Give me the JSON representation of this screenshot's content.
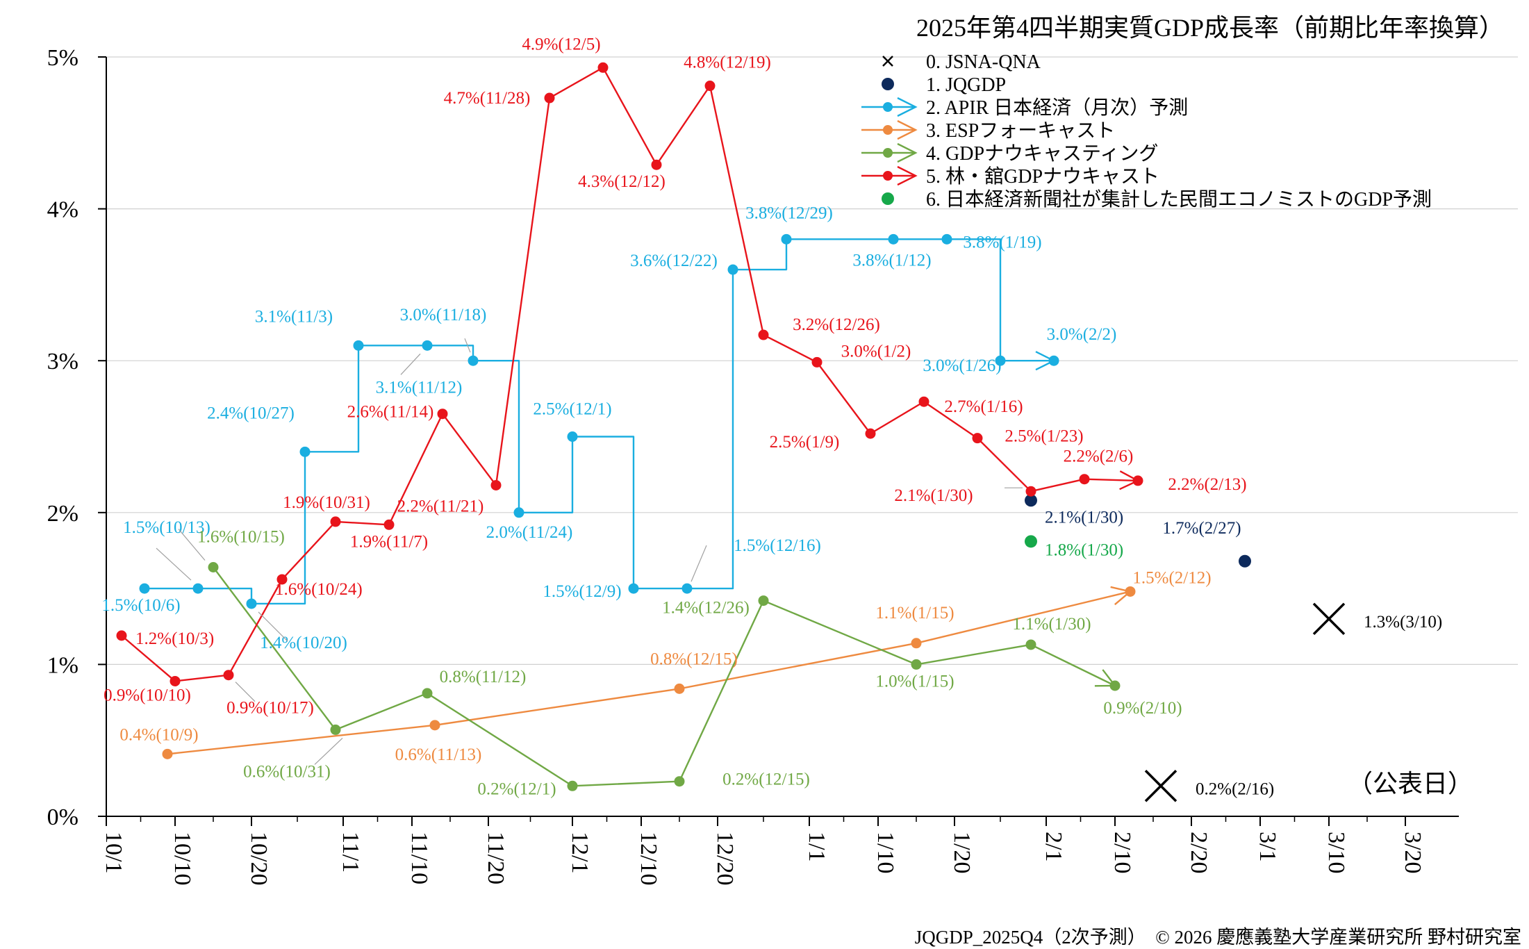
{
  "chart_data": {
    "type": "line",
    "title": "2025年第4四半期実質GDP成長率（前期比年率換算）",
    "footer": "JQGDP_2025Q4（2次予測）　© 2026 慶應義塾大学産業研究所 野村研究室",
    "announce_label": "（公表日）",
    "y_ticks": [
      "0%",
      "1%",
      "2%",
      "3%",
      "4%",
      "5%"
    ],
    "ylim": [
      0,
      5
    ],
    "x_ticks": [
      "10/1",
      "10/10",
      "10/20",
      "11/1",
      "11/10",
      "11/20",
      "12/1",
      "12/10",
      "12/20",
      "1/1",
      "1/10",
      "1/20",
      "2/1",
      "2/10",
      "2/20",
      "3/1",
      "3/10",
      "3/20"
    ],
    "x_start": "2025-10-01",
    "x_end": "2026-03-27",
    "grid": true,
    "legend_position": "top-right",
    "legend": [
      {
        "label": "0. JSNA-QNA",
        "color": "#000000",
        "marker": "cross"
      },
      {
        "label": "1. JQGDP",
        "color": "#0d2a5c",
        "marker": "dot"
      },
      {
        "label": "2. APIR 日本経済（月次）予測",
        "color": "#1aaee0",
        "marker": "line-arrow"
      },
      {
        "label": "3. ESPフォーキャスト",
        "color": "#ee8a40",
        "marker": "line-arrow"
      },
      {
        "label": "4. GDPナウキャスティング",
        "color": "#70a845",
        "marker": "line-arrow"
      },
      {
        "label": "5. 林・舘GDPナウキャスト",
        "color": "#e8141b",
        "marker": "line-arrow"
      },
      {
        "label": "6. 日本経済新聞社が集計した民間エコノミストのGDP予測",
        "color": "#16a84a",
        "marker": "dot"
      }
    ],
    "series": [
      {
        "name": "0. JSNA-QNA",
        "color": "#000000",
        "marker": "cross",
        "line": false,
        "points": [
          {
            "date": "2026-02-16",
            "value": 0.2,
            "label": "0.2%(2/16)"
          },
          {
            "date": "2026-03-10",
            "value": 1.3,
            "label": "1.3%(3/10)"
          }
        ]
      },
      {
        "name": "1. JQGDP",
        "color": "#0d2a5c",
        "marker": "dot",
        "line": false,
        "points": [
          {
            "date": "2026-01-30",
            "value": 2.08,
            "label": "2.1%(1/30)"
          },
          {
            "date": "2026-02-27",
            "value": 1.68,
            "label": "1.7%(2/27)"
          }
        ]
      },
      {
        "name": "2. APIR 日本経済（月次）予測",
        "color": "#1aaee0",
        "marker": "dot",
        "line": "step",
        "arrow": true,
        "points": [
          {
            "date": "2025-10-06",
            "value": 1.5,
            "label": "1.5%(10/6)"
          },
          {
            "date": "2025-10-13",
            "value": 1.5,
            "label": "1.5%(10/13)"
          },
          {
            "date": "2025-10-20",
            "value": 1.4,
            "label": "1.4%(10/20)"
          },
          {
            "date": "2025-10-27",
            "value": 2.4,
            "label": "2.4%(10/27)"
          },
          {
            "date": "2025-11-03",
            "value": 3.1,
            "label": "3.1%(11/3)"
          },
          {
            "date": "2025-11-12",
            "value": 3.1,
            "label": "3.1%(11/12)"
          },
          {
            "date": "2025-11-18",
            "value": 3.0,
            "label": "3.0%(11/18)"
          },
          {
            "date": "2025-11-24",
            "value": 2.0,
            "label": "2.0%(11/24)"
          },
          {
            "date": "2025-12-01",
            "value": 2.5,
            "label": "2.5%(12/1)"
          },
          {
            "date": "2025-12-09",
            "value": 1.5,
            "label": "1.5%(12/9)"
          },
          {
            "date": "2025-12-16",
            "value": 1.5,
            "label": "1.5%(12/16)"
          },
          {
            "date": "2025-12-22",
            "value": 3.6,
            "label": "3.6%(12/22)"
          },
          {
            "date": "2025-12-29",
            "value": 3.8,
            "label": "3.8%(12/29)"
          },
          {
            "date": "2026-01-12",
            "value": 3.8,
            "label": "3.8%(1/12)"
          },
          {
            "date": "2026-01-19",
            "value": 3.8,
            "label": "3.8%(1/19)"
          },
          {
            "date": "2026-01-26",
            "value": 3.0,
            "label": "3.0%(1/26)"
          },
          {
            "date": "2026-02-02",
            "value": 3.0,
            "label": "3.0%(2/2)"
          }
        ]
      },
      {
        "name": "3. ESPフォーキャスト",
        "color": "#ee8a40",
        "marker": "dot",
        "line": true,
        "arrow": true,
        "points": [
          {
            "date": "2025-10-09",
            "value": 0.41,
            "label": "0.4%(10/9)"
          },
          {
            "date": "2025-11-13",
            "value": 0.6,
            "label": "0.6%(11/13)"
          },
          {
            "date": "2025-12-15",
            "value": 0.84,
            "label": "0.8%(12/15)"
          },
          {
            "date": "2026-01-15",
            "value": 1.14,
            "label": "1.1%(1/15)"
          },
          {
            "date": "2026-02-12",
            "value": 1.48,
            "label": "1.5%(2/12)"
          }
        ]
      },
      {
        "name": "4. GDPナウキャスティング",
        "color": "#70a845",
        "marker": "dot",
        "line": true,
        "arrow": true,
        "points": [
          {
            "date": "2025-10-15",
            "value": 1.64,
            "label": "1.6%(10/15)"
          },
          {
            "date": "2025-10-31",
            "value": 0.57,
            "label": "0.6%(10/31)"
          },
          {
            "date": "2025-11-12",
            "value": 0.81,
            "label": "0.8%(11/12)"
          },
          {
            "date": "2025-12-01",
            "value": 0.2,
            "label": "0.2%(12/1)"
          },
          {
            "date": "2025-12-15",
            "value": 0.23,
            "label": "0.2%(12/15)"
          },
          {
            "date": "2025-12-26",
            "value": 1.42,
            "label": "1.4%(12/26)"
          },
          {
            "date": "2026-01-15",
            "value": 1.0,
            "label": "1.0%(1/15)"
          },
          {
            "date": "2026-01-30",
            "value": 1.13,
            "label": "1.1%(1/30)"
          },
          {
            "date": "2026-02-10",
            "value": 0.86,
            "label": "0.9%(2/10)"
          }
        ]
      },
      {
        "name": "5. 林・舘GDPナウキャスト",
        "color": "#e8141b",
        "marker": "dot",
        "line": true,
        "arrow": true,
        "points": [
          {
            "date": "2025-10-03",
            "value": 1.19,
            "label": "1.2%(10/3)"
          },
          {
            "date": "2025-10-10",
            "value": 0.89,
            "label": "0.9%(10/10)"
          },
          {
            "date": "2025-10-17",
            "value": 0.93,
            "label": "0.9%(10/17)"
          },
          {
            "date": "2025-10-24",
            "value": 1.56,
            "label": "1.6%(10/24)"
          },
          {
            "date": "2025-10-31",
            "value": 1.94,
            "label": "1.9%(10/31)"
          },
          {
            "date": "2025-11-07",
            "value": 1.92,
            "label": "1.9%(11/7)"
          },
          {
            "date": "2025-11-14",
            "value": 2.65,
            "label": "2.6%(11/14)"
          },
          {
            "date": "2025-11-21",
            "value": 2.18,
            "label": "2.2%(11/21)"
          },
          {
            "date": "2025-11-28",
            "value": 4.73,
            "label": "4.7%(11/28)"
          },
          {
            "date": "2025-12-05",
            "value": 4.93,
            "label": "4.9%(12/5)"
          },
          {
            "date": "2025-12-12",
            "value": 4.29,
            "label": "4.3%(12/12)"
          },
          {
            "date": "2025-12-19",
            "value": 4.81,
            "label": "4.8%(12/19)"
          },
          {
            "date": "2025-12-26",
            "value": 3.17,
            "label": "3.2%(12/26)"
          },
          {
            "date": "2026-01-02",
            "value": 2.99,
            "label": "3.0%(1/2)"
          },
          {
            "date": "2026-01-09",
            "value": 2.52,
            "label": "2.5%(1/9)"
          },
          {
            "date": "2026-01-16",
            "value": 2.73,
            "label": "2.7%(1/16)"
          },
          {
            "date": "2026-01-23",
            "value": 2.49,
            "label": "2.5%(1/23)"
          },
          {
            "date": "2026-01-30",
            "value": 2.14,
            "label": "2.1%(1/30)"
          },
          {
            "date": "2026-02-06",
            "value": 2.22,
            "label": "2.2%(2/6)"
          },
          {
            "date": "2026-02-13",
            "value": 2.21,
            "label": "2.2%(2/13)"
          }
        ]
      },
      {
        "name": "6. 日本経済新聞社が集計した民間エコノミストのGDP予測",
        "color": "#16a84a",
        "marker": "dot",
        "line": false,
        "points": [
          {
            "date": "2026-01-30",
            "value": 1.81,
            "label": "1.8%(1/30)"
          }
        ]
      }
    ]
  }
}
